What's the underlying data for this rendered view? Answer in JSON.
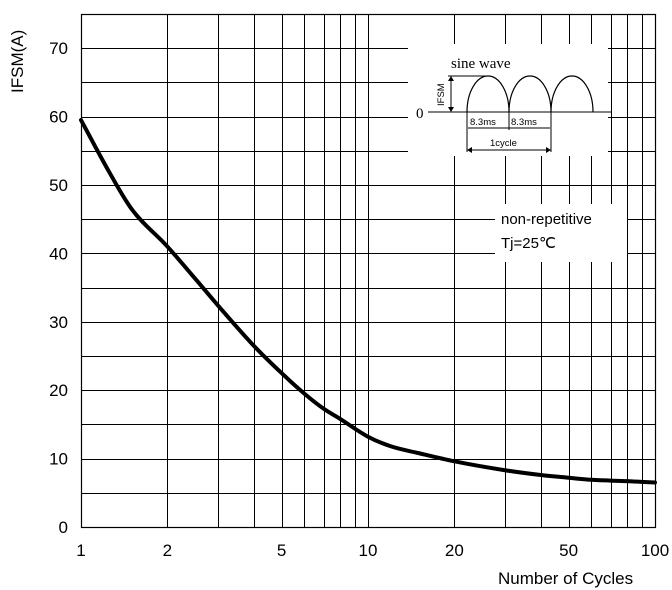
{
  "chart_data": {
    "type": "line",
    "ylabel": "IFSM(A)",
    "xlabel": "Number of Cycles",
    "x_scale": "log",
    "xlim": [
      1,
      100
    ],
    "ylim": [
      0,
      75
    ],
    "grid": true,
    "x_ticks": [
      1,
      2,
      5,
      10,
      20,
      50,
      100
    ],
    "x_tick_labels": [
      "1",
      "2",
      "5",
      "10",
      "20",
      "50",
      "100"
    ],
    "y_ticks": [
      0,
      10,
      20,
      30,
      40,
      50,
      60,
      70
    ],
    "y_tick_labels": [
      "0",
      "10",
      "20",
      "30",
      "40",
      "50",
      "60",
      "70"
    ],
    "series": [
      {
        "color": "#000000",
        "x": [
          1,
          1.25,
          1.5,
          2,
          2.5,
          3,
          4,
          5,
          6,
          7,
          8,
          10,
          12,
          15,
          20,
          30,
          40,
          50,
          60,
          80,
          100
        ],
        "y": [
          59.5,
          52,
          46.5,
          41,
          36.3,
          32.4,
          26.5,
          22.5,
          19.5,
          17.3,
          15.8,
          13.2,
          11.8,
          10.8,
          9.6,
          8.3,
          7.6,
          7.2,
          6.9,
          6.7,
          6.5
        ]
      }
    ],
    "annotations": {
      "condition_line1": "non-repetitive",
      "condition_line2": "Tj=25℃"
    },
    "inset": {
      "title": "sine wave",
      "ylabel": "IFSM",
      "zero_label": "0",
      "half_period_1": "8.3ms",
      "half_period_2": "8.3ms",
      "cycle_label": "1cycle"
    }
  }
}
